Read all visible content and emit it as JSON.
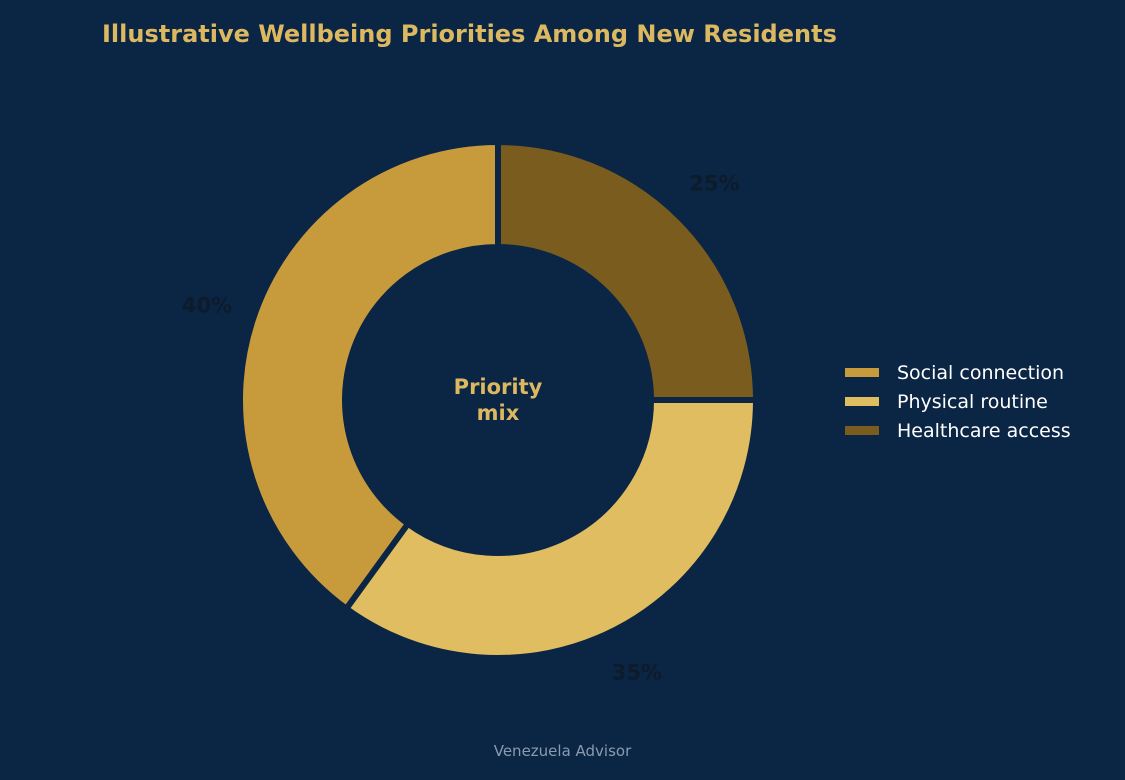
{
  "chart_data": {
    "type": "pie",
    "variant": "donut",
    "title": "Illustrative Wellbeing Priorities Among New Residents",
    "center_label": [
      "Priority",
      "mix"
    ],
    "categories": [
      "Social connection",
      "Physical routine",
      "Healthcare access"
    ],
    "values": [
      40,
      35,
      25
    ],
    "value_labels": [
      "40%",
      "35%",
      "25%"
    ],
    "colors": [
      "#c79b3b",
      "#dfbd60",
      "#7a5c1e"
    ],
    "legend_position": "right",
    "start_angle": 90,
    "direction": "counterclockwise"
  },
  "footer": "Venezuela Advisor",
  "colors": {
    "background": "#0b2545",
    "title": "#dcb860",
    "label_text": "#0d1b2a",
    "footer_text": "#8a9ab0"
  }
}
